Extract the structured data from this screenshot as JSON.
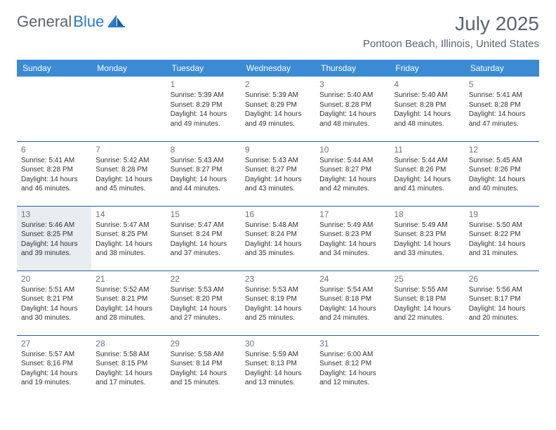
{
  "logo": {
    "general": "General",
    "blue": "Blue"
  },
  "title": "July 2025",
  "location": "Pontoon Beach, Illinois, United States",
  "colors": {
    "header_bg": "#3b8bd4",
    "header_text": "#ffffff",
    "border": "#2d5f8f",
    "daynum": "#6b7580",
    "body_text": "#333333",
    "today_bg": "#e8edf2",
    "logo_gray": "#5a6570",
    "logo_blue": "#2d7bc4"
  },
  "daysOfWeek": [
    "Sunday",
    "Monday",
    "Tuesday",
    "Wednesday",
    "Thursday",
    "Friday",
    "Saturday"
  ],
  "highlightedDay": 13,
  "weeks": [
    [
      null,
      null,
      {
        "n": 1,
        "sr": "5:39 AM",
        "ss": "8:29 PM",
        "dl": "14 hours and 49 minutes."
      },
      {
        "n": 2,
        "sr": "5:39 AM",
        "ss": "8:29 PM",
        "dl": "14 hours and 49 minutes."
      },
      {
        "n": 3,
        "sr": "5:40 AM",
        "ss": "8:28 PM",
        "dl": "14 hours and 48 minutes."
      },
      {
        "n": 4,
        "sr": "5:40 AM",
        "ss": "8:28 PM",
        "dl": "14 hours and 48 minutes."
      },
      {
        "n": 5,
        "sr": "5:41 AM",
        "ss": "8:28 PM",
        "dl": "14 hours and 47 minutes."
      }
    ],
    [
      {
        "n": 6,
        "sr": "5:41 AM",
        "ss": "8:28 PM",
        "dl": "14 hours and 46 minutes."
      },
      {
        "n": 7,
        "sr": "5:42 AM",
        "ss": "8:28 PM",
        "dl": "14 hours and 45 minutes."
      },
      {
        "n": 8,
        "sr": "5:43 AM",
        "ss": "8:27 PM",
        "dl": "14 hours and 44 minutes."
      },
      {
        "n": 9,
        "sr": "5:43 AM",
        "ss": "8:27 PM",
        "dl": "14 hours and 43 minutes."
      },
      {
        "n": 10,
        "sr": "5:44 AM",
        "ss": "8:27 PM",
        "dl": "14 hours and 42 minutes."
      },
      {
        "n": 11,
        "sr": "5:44 AM",
        "ss": "8:26 PM",
        "dl": "14 hours and 41 minutes."
      },
      {
        "n": 12,
        "sr": "5:45 AM",
        "ss": "8:26 PM",
        "dl": "14 hours and 40 minutes."
      }
    ],
    [
      {
        "n": 13,
        "sr": "5:46 AM",
        "ss": "8:25 PM",
        "dl": "14 hours and 39 minutes."
      },
      {
        "n": 14,
        "sr": "5:47 AM",
        "ss": "8:25 PM",
        "dl": "14 hours and 38 minutes."
      },
      {
        "n": 15,
        "sr": "5:47 AM",
        "ss": "8:24 PM",
        "dl": "14 hours and 37 minutes."
      },
      {
        "n": 16,
        "sr": "5:48 AM",
        "ss": "8:24 PM",
        "dl": "14 hours and 35 minutes."
      },
      {
        "n": 17,
        "sr": "5:49 AM",
        "ss": "8:23 PM",
        "dl": "14 hours and 34 minutes."
      },
      {
        "n": 18,
        "sr": "5:49 AM",
        "ss": "8:23 PM",
        "dl": "14 hours and 33 minutes."
      },
      {
        "n": 19,
        "sr": "5:50 AM",
        "ss": "8:22 PM",
        "dl": "14 hours and 31 minutes."
      }
    ],
    [
      {
        "n": 20,
        "sr": "5:51 AM",
        "ss": "8:21 PM",
        "dl": "14 hours and 30 minutes."
      },
      {
        "n": 21,
        "sr": "5:52 AM",
        "ss": "8:21 PM",
        "dl": "14 hours and 28 minutes."
      },
      {
        "n": 22,
        "sr": "5:53 AM",
        "ss": "8:20 PM",
        "dl": "14 hours and 27 minutes."
      },
      {
        "n": 23,
        "sr": "5:53 AM",
        "ss": "8:19 PM",
        "dl": "14 hours and 25 minutes."
      },
      {
        "n": 24,
        "sr": "5:54 AM",
        "ss": "8:18 PM",
        "dl": "14 hours and 24 minutes."
      },
      {
        "n": 25,
        "sr": "5:55 AM",
        "ss": "8:18 PM",
        "dl": "14 hours and 22 minutes."
      },
      {
        "n": 26,
        "sr": "5:56 AM",
        "ss": "8:17 PM",
        "dl": "14 hours and 20 minutes."
      }
    ],
    [
      {
        "n": 27,
        "sr": "5:57 AM",
        "ss": "8:16 PM",
        "dl": "14 hours and 19 minutes."
      },
      {
        "n": 28,
        "sr": "5:58 AM",
        "ss": "8:15 PM",
        "dl": "14 hours and 17 minutes."
      },
      {
        "n": 29,
        "sr": "5:58 AM",
        "ss": "8:14 PM",
        "dl": "14 hours and 15 minutes."
      },
      {
        "n": 30,
        "sr": "5:59 AM",
        "ss": "8:13 PM",
        "dl": "14 hours and 13 minutes."
      },
      {
        "n": 31,
        "sr": "6:00 AM",
        "ss": "8:12 PM",
        "dl": "14 hours and 12 minutes."
      },
      null,
      null
    ]
  ],
  "labels": {
    "sunrise": "Sunrise: ",
    "sunset": "Sunset: ",
    "daylight": "Daylight: "
  }
}
